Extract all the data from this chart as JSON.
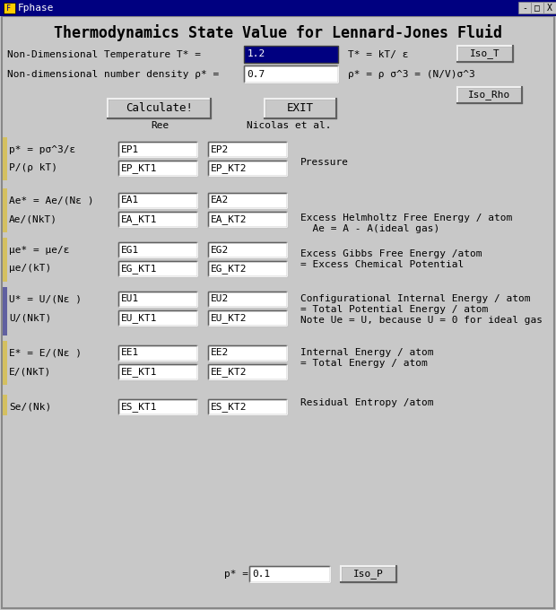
{
  "title": "Thermodynamics State Value for Lennard-Jones Fluid",
  "window_title": "Fphase",
  "bg_color": "#c8c8c8",
  "title_bar_color": "#000080",
  "title_bar_text_color": "#ffffff",
  "input_bg": "#ffffff",
  "button_bg": "#c8c8c8",
  "text_color": "#000000",
  "col1_header": "Ree",
  "col2_header": "Nicolas et al.",
  "temp_label": "Non-Dimensional Temperature T* =",
  "temp_value": "1.2",
  "temp_eq": "T* = kT/ ε",
  "density_label": "Non-dimensional number density ρ* =",
  "density_value": "0.7",
  "density_eq": "ρ* = ρ σ^3 = (N/V)σ^3",
  "pressure_label": "p* =",
  "pressure_value": "0.1",
  "btn_calculate": "Calculate!",
  "btn_exit": "EXIT",
  "btn_iso_t": "Iso_T",
  "btn_iso_rho": "Iso_Rho",
  "btn_iso_p": "Iso_P",
  "row_groups": [
    {
      "rows": [
        {
          "label": "p* = pσ^3/ε",
          "b1": "EP1",
          "b2": "EP2"
        },
        {
          "label": "P/(ρ kT)",
          "b1": "EP_KT1",
          "b2": "EP_KT2"
        }
      ],
      "desc": [
        "Pressure"
      ],
      "bar_color": "#d4c060"
    },
    {
      "rows": [
        {
          "label": "Ae* = Ae/(Nε )",
          "b1": "EA1",
          "b2": "EA2"
        },
        {
          "label": "Ae/(NkT)",
          "b1": "EA_KT1",
          "b2": "EA_KT2"
        }
      ],
      "desc": [
        "Excess Helmholtz Free Energy / atom",
        "  Ae = A - A(ideal gas)"
      ],
      "bar_color": "#d4c060"
    },
    {
      "rows": [
        {
          "label": "μe* = μe/ε",
          "b1": "EG1",
          "b2": "EG2"
        },
        {
          "label": "μe/(kT)",
          "b1": "EG_KT1",
          "b2": "EG_KT2"
        }
      ],
      "desc": [
        "Excess Gibbs Free Energy /atom",
        "= Excess Chemical Potential"
      ],
      "bar_color": "#d4c060"
    },
    {
      "rows": [
        {
          "label": "U* = U/(Nε )",
          "b1": "EU1",
          "b2": "EU2"
        },
        {
          "label": "U/(NkT)",
          "b1": "EU_KT1",
          "b2": "EU_KT2"
        }
      ],
      "desc": [
        "Configurational Internal Energy / atom",
        "= Total Potential Energy / atom",
        "Note Ue = U, because U = 0 for ideal gas"
      ],
      "bar_color": "#5555aa"
    },
    {
      "rows": [
        {
          "label": "E* = E/(Nε )",
          "b1": "EE1",
          "b2": "EE2"
        },
        {
          "label": "E/(NkT)",
          "b1": "EE_KT1",
          "b2": "EE_KT2"
        }
      ],
      "desc": [
        "Internal Energy / atom",
        "= Total Energy / atom"
      ],
      "bar_color": "#d4c060"
    },
    {
      "rows": [
        {
          "label": "Se/(Nk)",
          "b1": "ES_KT1",
          "b2": "ES_KT2"
        }
      ],
      "desc": [
        "Residual Entropy /atom"
      ],
      "bar_color": "#d4c060"
    }
  ]
}
